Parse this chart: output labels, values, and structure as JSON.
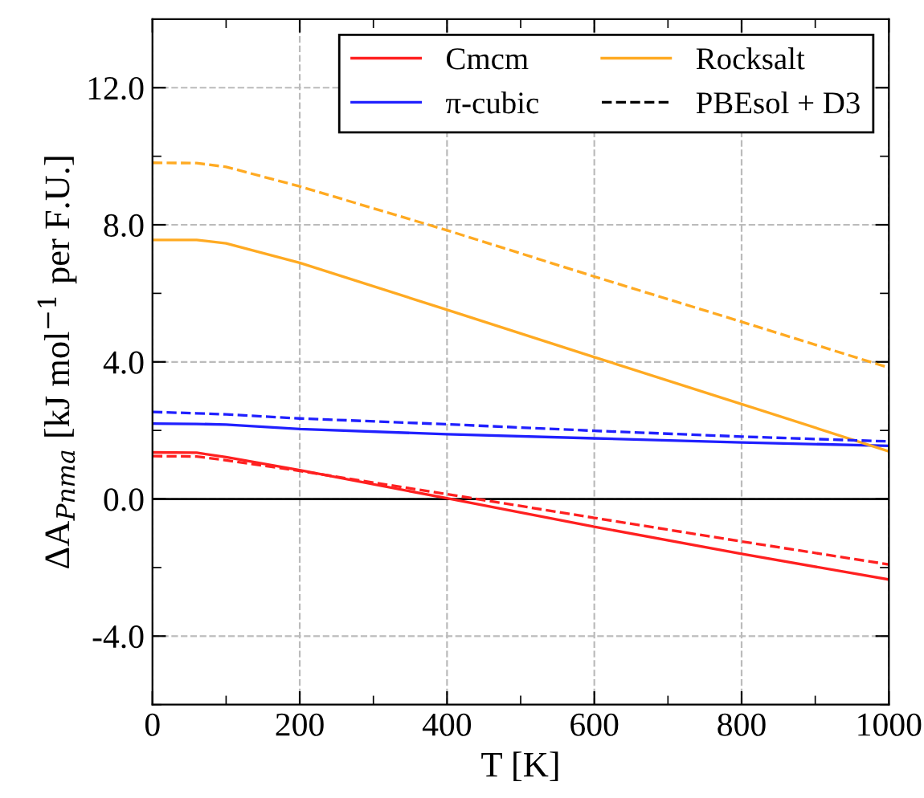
{
  "chart_data": {
    "type": "line",
    "xlabel": "T [K]",
    "ylabel": "ΔA$_{Pnma}$ [kJ mol$^{−1}$ per F.U.]",
    "x": [
      0,
      60,
      100,
      200,
      400,
      600,
      800,
      1000
    ],
    "series": [
      {
        "name": "Cmcm",
        "color": "#ff2020",
        "values": [
          1.36,
          1.35,
          1.22,
          0.84,
          0.02,
          -0.81,
          -1.6,
          -2.35
        ]
      },
      {
        "name": "π-cubic",
        "color": "#2020ff",
        "values": [
          2.2,
          2.19,
          2.17,
          2.04,
          1.89,
          1.77,
          1.65,
          1.55
        ]
      },
      {
        "name": "Rocksalt",
        "color": "#ffaa22",
        "values": [
          7.56,
          7.56,
          7.46,
          6.89,
          5.52,
          4.14,
          2.77,
          1.39
        ]
      },
      {
        "name": "PBEsol + D3",
        "color": "#000000",
        "line_style": "dashed",
        "values": [
          null,
          null,
          null,
          null,
          null,
          null,
          null,
          null
        ]
      },
      {
        "color": "#ff2020",
        "line_style": "dashed",
        "values": [
          1.25,
          1.24,
          1.13,
          0.82,
          0.14,
          -0.55,
          -1.24,
          -1.91
        ]
      },
      {
        "color": "#2020ff",
        "line_style": "dashed",
        "values": [
          2.54,
          2.5,
          2.47,
          2.35,
          2.18,
          1.99,
          1.82,
          1.68
        ]
      },
      {
        "color": "#ffaa22",
        "line_style": "dashed",
        "values": [
          9.81,
          9.8,
          9.69,
          9.12,
          7.84,
          6.49,
          5.17,
          3.83
        ]
      }
    ],
    "xlim": [
      0,
      1000
    ],
    "xticks": [
      0,
      200,
      400,
      600,
      800,
      1000
    ],
    "ylim": [
      -6,
      14
    ],
    "yticks": [
      {
        "value": -4,
        "label": "-4.0"
      },
      {
        "value": 0,
        "label": "0.0"
      },
      {
        "value": 4,
        "label": "4.0"
      },
      {
        "value": 8,
        "label": "8.0"
      },
      {
        "value": 12,
        "label": "12.0"
      }
    ],
    "ref_lines": [
      {
        "axis": "y",
        "value": 0,
        "color": "#000000",
        "line_style": "solid"
      }
    ],
    "grid": true,
    "legend": "top right",
    "marker": "none",
    "line_style": "solid"
  }
}
